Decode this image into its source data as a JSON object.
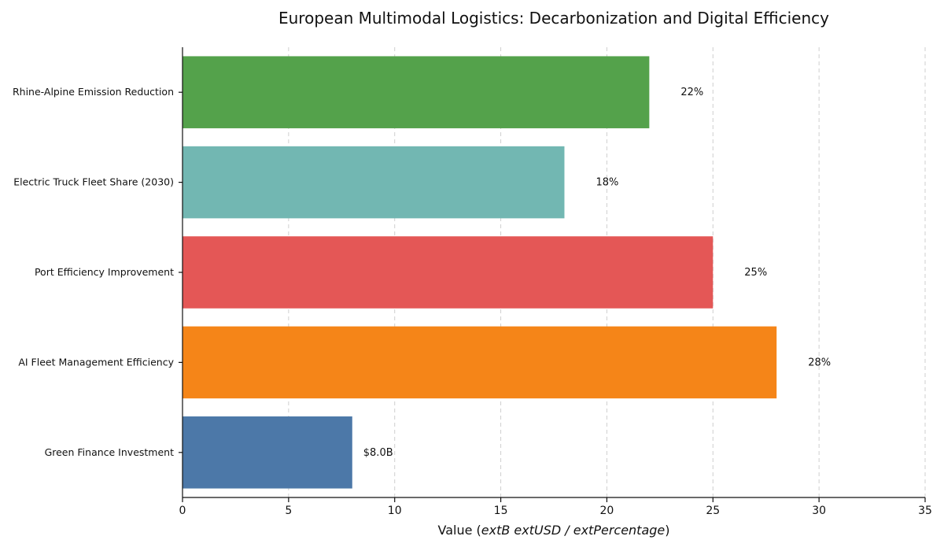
{
  "chart_data": {
    "type": "bar",
    "orientation": "horizontal",
    "title": "European Multimodal Logistics: Decarbonization and Digital Efficiency",
    "xlabel_prefix": "Value (",
    "xlabel_math": "extB extUSD / extPercentage",
    "xlabel_suffix": ")",
    "ylabel": "",
    "categories": [
      "Green Finance Investment",
      "AI Fleet Management Efficiency",
      "Port Efficiency Improvement",
      "Electric Truck Fleet Share (2030)",
      "Rhine-Alpine Emission Reduction"
    ],
    "values": [
      8,
      28,
      25,
      18,
      22
    ],
    "data_labels": [
      "$8.0B",
      "28%",
      "25%",
      "18%",
      "22%"
    ],
    "colors": [
      "#4c78a8",
      "#f58518",
      "#e45756",
      "#72b7b2",
      "#54a24b"
    ],
    "xlim": [
      0,
      35
    ],
    "xticks": [
      0,
      5,
      10,
      15,
      20,
      25,
      30,
      35
    ],
    "grid": "x-dashed",
    "legend": "none"
  }
}
